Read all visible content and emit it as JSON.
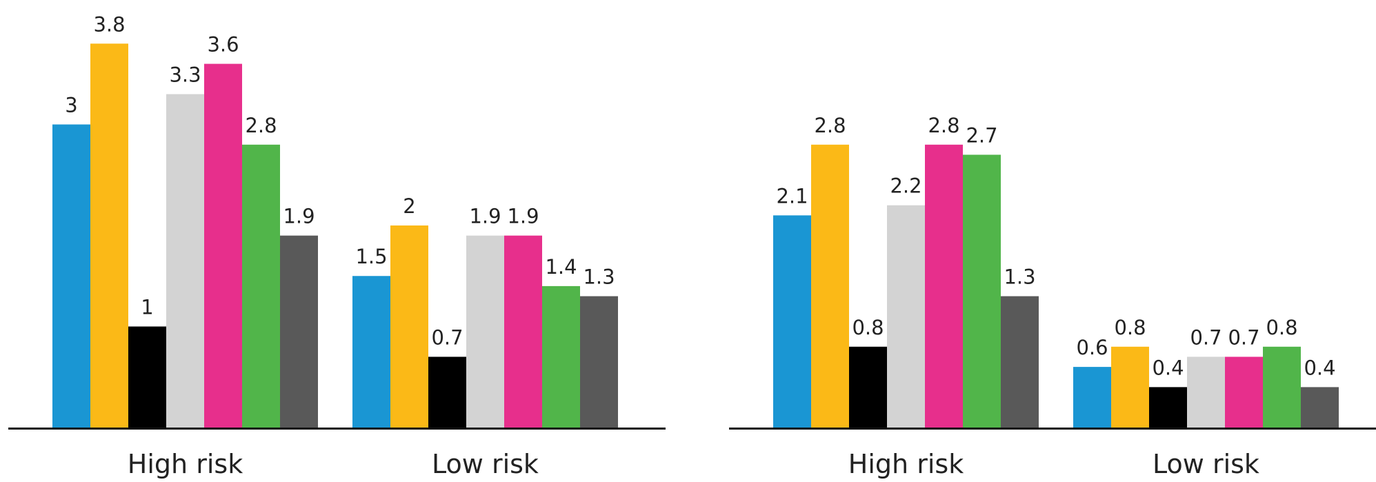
{
  "colors": [
    "#1a96d3",
    "#fbb917",
    "#000000",
    "#d3d3d3",
    "#e72f8c",
    "#51b54a",
    "#595959"
  ],
  "axis_color": "#111111",
  "chart_data": [
    {
      "type": "bar",
      "categories": [
        "High risk",
        "Low risk"
      ],
      "series": [
        {
          "values": [
            3,
            1.5
          ]
        },
        {
          "values": [
            3.8,
            2
          ]
        },
        {
          "values": [
            1,
            0.7
          ]
        },
        {
          "values": [
            3.3,
            1.9
          ]
        },
        {
          "values": [
            3.6,
            1.9
          ]
        },
        {
          "values": [
            2.8,
            1.4
          ]
        },
        {
          "values": [
            1.9,
            1.3
          ]
        }
      ],
      "title": "",
      "xlabel": "",
      "ylabel": "",
      "ylim": [
        0,
        4.15
      ],
      "grid": false,
      "legend": "none"
    },
    {
      "type": "bar",
      "categories": [
        "High risk",
        "Low risk"
      ],
      "series": [
        {
          "values": [
            2.1,
            0.6
          ]
        },
        {
          "values": [
            2.8,
            0.8
          ]
        },
        {
          "values": [
            0.8,
            0.4
          ]
        },
        {
          "values": [
            2.2,
            0.7
          ]
        },
        {
          "values": [
            2.8,
            0.7
          ]
        },
        {
          "values": [
            2.7,
            0.8
          ]
        },
        {
          "values": [
            1.3,
            0.4
          ]
        }
      ],
      "title": "",
      "xlabel": "",
      "ylabel": "",
      "ylim": [
        0,
        4.15
      ],
      "grid": false,
      "legend": "none"
    }
  ]
}
